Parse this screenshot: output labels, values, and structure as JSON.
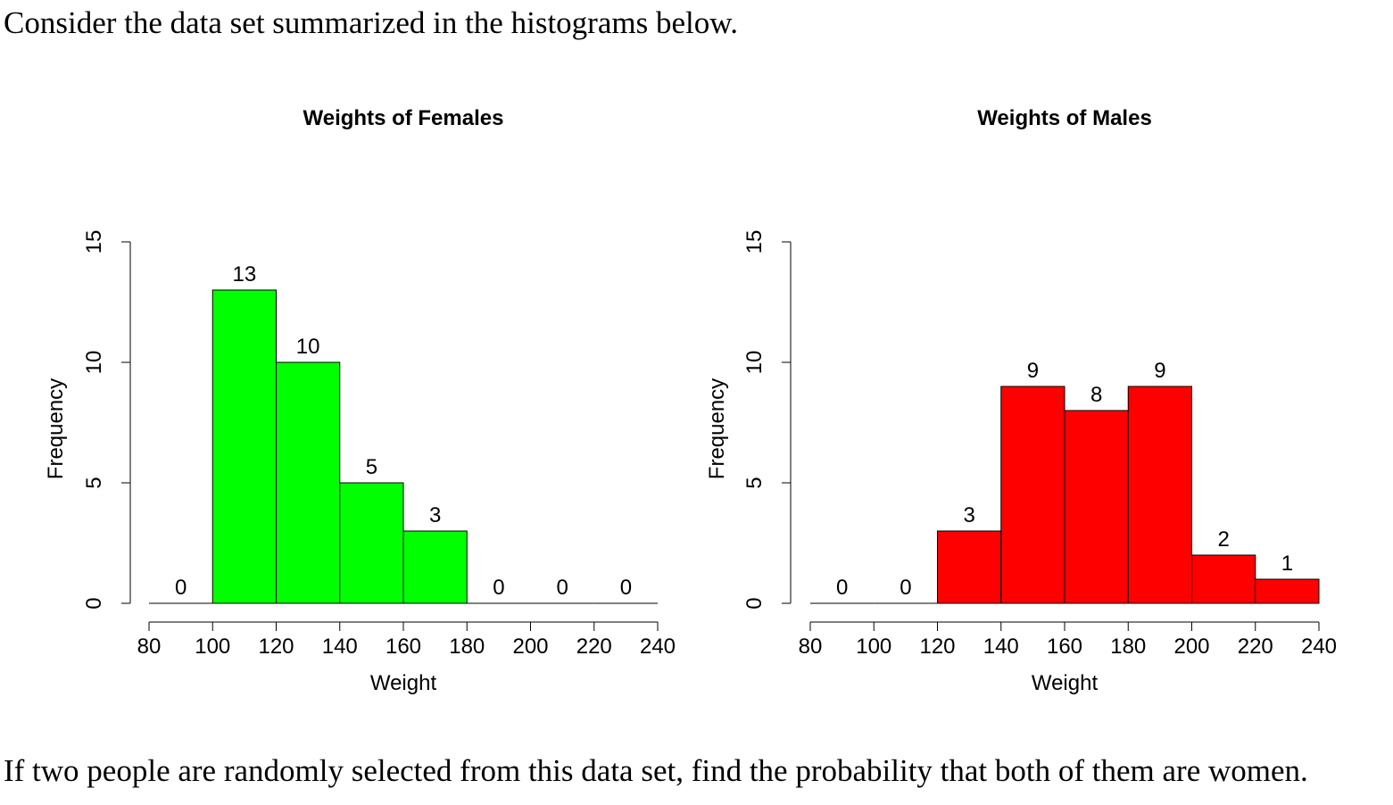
{
  "intro_text": "Consider the data set summarized in the histograms below.",
  "question_text": "If two people are randomly selected from this data set, find the probability that both of them are women.",
  "chart_data": [
    {
      "type": "bar",
      "title": "Weights of Females",
      "xlabel": "Weight",
      "ylabel": "Frequency",
      "bin_edges": [
        80,
        100,
        120,
        140,
        160,
        180,
        200,
        220,
        240
      ],
      "values": [
        0,
        13,
        10,
        5,
        3,
        0,
        0,
        0
      ],
      "xticks": [
        80,
        100,
        120,
        140,
        160,
        180,
        200,
        220,
        240
      ],
      "yticks": [
        0,
        5,
        10,
        15
      ],
      "ylim": [
        0,
        15
      ],
      "color": "#00ff00",
      "grid": false
    },
    {
      "type": "bar",
      "title": "Weights of Males",
      "xlabel": "Weight",
      "ylabel": "Frequency",
      "bin_edges": [
        80,
        100,
        120,
        140,
        160,
        180,
        200,
        220,
        240
      ],
      "values": [
        0,
        0,
        3,
        9,
        8,
        9,
        2,
        1
      ],
      "xticks": [
        80,
        100,
        120,
        140,
        160,
        180,
        200,
        220,
        240
      ],
      "yticks": [
        0,
        5,
        10,
        15
      ],
      "ylim": [
        0,
        15
      ],
      "color": "#ff0000",
      "grid": false
    }
  ]
}
